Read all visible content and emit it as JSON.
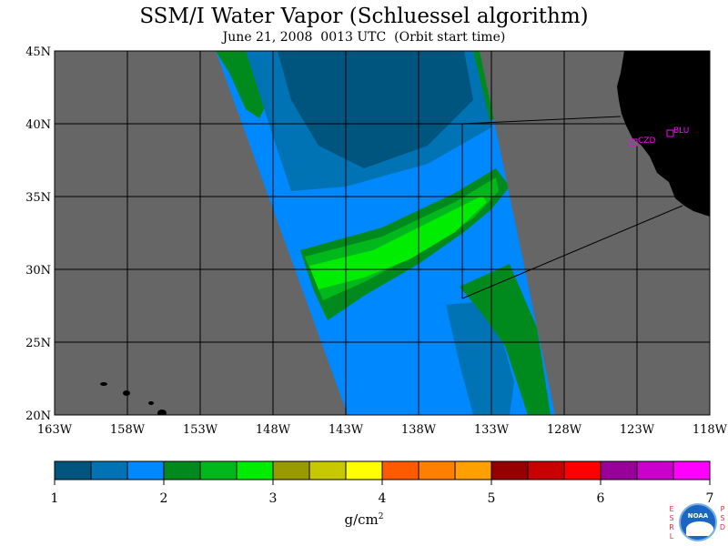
{
  "title": "SSM/I Water Vapor (Schluessel algorithm)",
  "subtitle": "June 21, 2008  0013 UTC  (Orbit start time)",
  "map": {
    "lon_range": [
      -163,
      -118
    ],
    "lat_range": [
      20,
      45
    ],
    "background_color": "#666666",
    "land_color": "#000000",
    "grid": true,
    "lat_labels": [
      "45N",
      "40N",
      "35N",
      "30N",
      "25N",
      "20N"
    ],
    "lon_labels": [
      "163W",
      "158W",
      "153W",
      "148W",
      "143W",
      "138W",
      "133W",
      "128W",
      "123W",
      "118W"
    ],
    "stations": [
      {
        "label": "CZD",
        "lon": -123.0,
        "lat": 38.6
      },
      {
        "label": "BLU",
        "lon": -120.8,
        "lat": 39.3
      }
    ],
    "swath_color_levels_g_cm2": {
      "dry_core": 1.3,
      "mid": 1.8,
      "moist": 2.3,
      "plume_edge": 2.6,
      "plume_core": 2.9
    }
  },
  "colorbar": {
    "tick_labels": [
      "1",
      "2",
      "3",
      "4",
      "5",
      "6",
      "7"
    ],
    "min": 1,
    "max": 7,
    "colors": [
      "#00557f",
      "#0073b5",
      "#0088ff",
      "#008a1e",
      "#00b81c",
      "#00ec00",
      "#999900",
      "#c8c800",
      "#ffff00",
      "#ff5a00",
      "#ff7f00",
      "#ffa000",
      "#960000",
      "#c80000",
      "#ff0000",
      "#990099",
      "#cc00cc",
      "#ff00ff"
    ],
    "units_base": "g/cm",
    "units_sup": "2"
  },
  "logo": {
    "left_letters": "ESRL",
    "right_letters": "PSD",
    "center_text": "NOAA"
  }
}
